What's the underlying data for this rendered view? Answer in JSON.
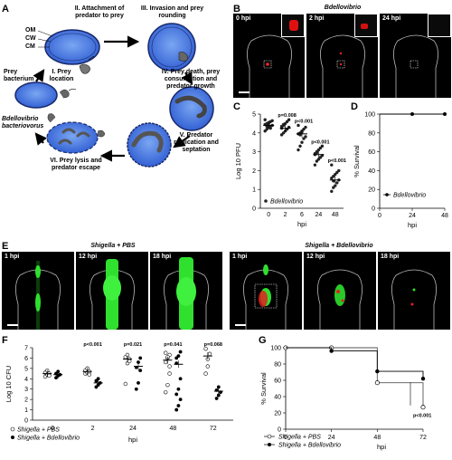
{
  "panels": {
    "A": {
      "label": "A",
      "steps": [
        "I. Prey location",
        "II. Attachment of predator to prey",
        "III. Invasion and prey rounding",
        "IV. Prey death, prey consumption and predator growth",
        "V. Predator replication and septation",
        "VI. Prey lysis and predator escape"
      ],
      "membranes": [
        "OM",
        "CW",
        "CM"
      ],
      "prey_label": "Prey bacterium",
      "predator_label": "Bdellovibrio bacteriovorus"
    },
    "B": {
      "label": "B",
      "title": "Bdellovibrio",
      "times": [
        "0 hpi",
        "2 hpi",
        "24 hpi"
      ]
    },
    "C": {
      "label": "C"
    },
    "D": {
      "label": "D"
    },
    "E": {
      "label": "E",
      "group1": "Shigella + PBS",
      "group2": "Shigella + Bdellovibrio",
      "times1": [
        "1 hpi",
        "12 hpi",
        "18 hpi"
      ],
      "times2": [
        "1 hpi",
        "12 hpi",
        "18 hpi"
      ]
    },
    "F": {
      "label": "F"
    },
    "G": {
      "label": "G"
    }
  },
  "chart_data": [
    {
      "id": "C",
      "type": "scatter",
      "categories": [
        "0",
        "2",
        "6",
        "24",
        "48"
      ],
      "ylabel": "Log 10 PFU",
      "xlabel": "hpi",
      "ylim": [
        0,
        5
      ],
      "yticks": [
        0,
        1,
        2,
        3,
        4,
        5
      ],
      "legend": "Bdellovibrio",
      "means": [
        4.4,
        4.25,
        3.95,
        2.85,
        1.5
      ],
      "pvalues": [
        "",
        "p=0.008",
        "p<0.001",
        "p<0.001",
        "p<0.001"
      ],
      "points": [
        [
          4.1,
          4.2,
          4.3,
          4.35,
          4.4,
          4.45,
          4.5,
          4.55,
          4.6,
          4.65,
          4.7,
          4.35,
          4.5,
          4.25
        ],
        [
          3.9,
          4.0,
          4.1,
          4.2,
          4.3,
          4.35,
          4.4,
          4.5,
          4.6,
          4.7,
          4.25,
          4.45
        ],
        [
          3.1,
          3.3,
          3.5,
          3.7,
          3.8,
          3.95,
          4.0,
          4.1,
          4.2,
          4.3,
          4.4,
          3.9,
          4.05
        ],
        [
          2.3,
          2.5,
          2.6,
          2.7,
          2.8,
          2.9,
          3.0,
          3.1,
          3.2,
          3.3,
          2.85,
          2.95
        ],
        [
          0.9,
          1.1,
          1.2,
          1.35,
          1.5,
          1.6,
          1.7,
          1.8,
          1.9,
          2.0,
          2.3,
          1.45
        ]
      ]
    },
    {
      "id": "D",
      "type": "line",
      "x": [
        0,
        24,
        48
      ],
      "y": [
        100,
        100,
        100
      ],
      "ylabel": "% Survival",
      "xlabel": "hpi",
      "ylim": [
        0,
        100
      ],
      "yticks": [
        0,
        20,
        40,
        60,
        80,
        100
      ],
      "xticks": [
        0,
        24,
        48
      ],
      "legend": "Bdellovibrio"
    },
    {
      "id": "F",
      "type": "scatter",
      "categories": [
        "0",
        "2",
        "24",
        "48",
        "72"
      ],
      "ylabel": "Log 10 CFU",
      "xlabel": "hpi",
      "ylim": [
        0,
        7
      ],
      "yticks": [
        0,
        1,
        2,
        3,
        4,
        5,
        6,
        7
      ],
      "pvalues": [
        "",
        "p<0.001",
        "p=0.021",
        "p=0.041",
        "p=0.068"
      ],
      "series": [
        {
          "name": "Shigella + PBS",
          "marker": "open",
          "means": [
            4.5,
            4.7,
            5.9,
            5.8,
            6.2
          ],
          "points": [
            [
              4.2,
              4.4,
              4.5,
              4.6,
              4.8,
              4.3
            ],
            [
              4.5,
              4.6,
              4.7,
              4.8,
              5.0,
              4.4
            ],
            [
              3.5,
              5.5,
              5.9,
              6.1,
              6.3,
              5.7
            ],
            [
              2.7,
              3.4,
              4.5,
              5.6,
              6.0,
              6.3,
              6.5,
              6.1,
              5.2
            ],
            [
              4.5,
              5.2,
              6.4,
              6.9,
              5.9
            ]
          ]
        },
        {
          "name": "Shigella + Bdellovibrio",
          "marker": "filled",
          "means": [
            4.4,
            3.6,
            5.2,
            5.4,
            2.8
          ],
          "points": [
            [
              4.1,
              4.3,
              4.4,
              4.5,
              4.7
            ],
            [
              3.2,
              3.4,
              3.6,
              3.8,
              4.0
            ],
            [
              3.0,
              3.6,
              4.8,
              5.1,
              5.6,
              6.0
            ],
            [
              1.0,
              1.4,
              2.0,
              2.5,
              3.0,
              4.0,
              5.5,
              6.2,
              6.6,
              6.0
            ],
            [
              2.1,
              2.4,
              2.7,
              2.9,
              3.2
            ]
          ]
        }
      ]
    },
    {
      "id": "G",
      "type": "line",
      "ylabel": "% Survival",
      "xlabel": "hpi",
      "ylim": [
        0,
        100
      ],
      "yticks": [
        0,
        20,
        40,
        60,
        80,
        100
      ],
      "xticks": [
        0,
        24,
        48,
        72
      ],
      "annotation": "p<0.001",
      "series": [
        {
          "name": "Shigella + PBS",
          "marker": "open",
          "x": [
            0,
            24,
            48,
            72
          ],
          "y": [
            100,
            100,
            57,
            27
          ]
        },
        {
          "name": "Shigella + Bdellovibrio",
          "marker": "filled",
          "x": [
            0,
            24,
            48,
            72
          ],
          "y": [
            100,
            96,
            71,
            62
          ]
        }
      ]
    }
  ]
}
